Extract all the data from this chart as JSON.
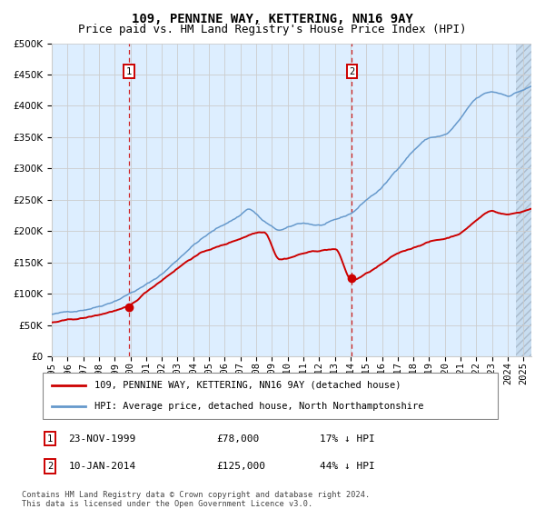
{
  "title": "109, PENNINE WAY, KETTERING, NN16 9AY",
  "subtitle": "Price paid vs. HM Land Registry's House Price Index (HPI)",
  "legend_label_red": "109, PENNINE WAY, KETTERING, NN16 9AY (detached house)",
  "legend_label_blue": "HPI: Average price, detached house, North Northamptonshire",
  "sale1_date": "23-NOV-1999",
  "sale1_price": 78000,
  "sale1_pct": "17%",
  "sale2_date": "10-JAN-2014",
  "sale2_price": 125000,
  "sale2_pct": "44%",
  "footnote": "Contains HM Land Registry data © Crown copyright and database right 2024.\nThis data is licensed under the Open Government Licence v3.0.",
  "ylim": [
    0,
    500000
  ],
  "yticks": [
    0,
    50000,
    100000,
    150000,
    200000,
    250000,
    300000,
    350000,
    400000,
    450000,
    500000
  ],
  "xlim_start": 1995.0,
  "xlim_end": 2025.5,
  "bg_color": "#ddeeff",
  "red_color": "#cc0000",
  "blue_color": "#6699cc",
  "grid_color": "#cccccc",
  "title_fontsize": 10,
  "subtitle_fontsize": 9,
  "tick_fontsize": 7.5,
  "sale1_x": 1999.917,
  "sale2_x": 2014.083,
  "hpi_anchors_x": [
    1995.0,
    1996.0,
    1997.0,
    1998.0,
    1999.0,
    2000.0,
    2001.0,
    2002.0,
    2003.0,
    2004.0,
    2005.0,
    2006.0,
    2007.0,
    2007.5,
    2008.5,
    2009.5,
    2010.0,
    2011.0,
    2012.0,
    2013.0,
    2014.0,
    2015.0,
    2016.0,
    2017.0,
    2018.0,
    2019.0,
    2020.0,
    2021.0,
    2022.0,
    2023.0,
    2023.5,
    2024.0,
    2024.5,
    2025.5
  ],
  "hpi_anchors_y": [
    67000,
    70000,
    75000,
    82000,
    92000,
    105000,
    118000,
    135000,
    158000,
    182000,
    200000,
    215000,
    230000,
    240000,
    220000,
    205000,
    208000,
    215000,
    212000,
    218000,
    228000,
    250000,
    270000,
    300000,
    330000,
    350000,
    355000,
    380000,
    410000,
    420000,
    418000,
    415000,
    420000,
    430000
  ],
  "red_anchors_x": [
    1995.0,
    1996.0,
    1997.0,
    1998.0,
    1999.0,
    1999.917,
    2001.0,
    2002.0,
    2003.0,
    2004.0,
    2005.0,
    2006.0,
    2007.0,
    2008.0,
    2008.5,
    2009.5,
    2010.0,
    2011.0,
    2012.0,
    2013.0,
    2014.083,
    2015.0,
    2016.0,
    2017.0,
    2018.0,
    2019.0,
    2020.0,
    2021.0,
    2022.0,
    2023.0,
    2023.5,
    2024.0,
    2024.5,
    2025.5
  ],
  "red_anchors_y": [
    54000,
    57000,
    60000,
    65000,
    72000,
    78000,
    100000,
    120000,
    140000,
    158000,
    170000,
    178000,
    188000,
    198000,
    200000,
    158000,
    160000,
    168000,
    172000,
    175000,
    125000,
    135000,
    150000,
    165000,
    175000,
    185000,
    190000,
    200000,
    220000,
    235000,
    232000,
    230000,
    232000,
    240000
  ]
}
